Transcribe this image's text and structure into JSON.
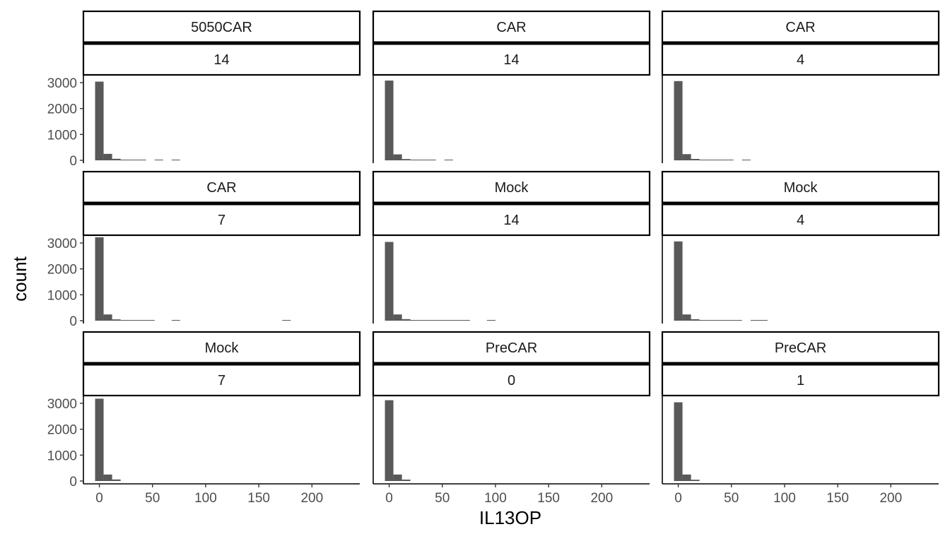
{
  "chart_data": {
    "type": "bar",
    "subtype": "faceted-histogram",
    "xlabel": "IL13OP",
    "ylabel": "count",
    "xlim": [
      -15,
      245
    ],
    "ylim": [
      0,
      3300
    ],
    "x_ticks": [
      0,
      50,
      100,
      150,
      200
    ],
    "y_ticks": [
      0,
      1000,
      2000,
      3000
    ],
    "bin_width": 8,
    "bar_color": "#595959",
    "grid": false,
    "legend": "none",
    "facets": [
      {
        "label1": "5050CAR",
        "label2": "14",
        "bins": [
          {
            "x": 0,
            "y": 3040
          },
          {
            "x": 8,
            "y": 250
          },
          {
            "x": 16,
            "y": 60
          },
          {
            "x": 24,
            "y": 20
          },
          {
            "x": 32,
            "y": 12
          },
          {
            "x": 40,
            "y": 8
          },
          {
            "x": 56,
            "y": 4
          },
          {
            "x": 72,
            "y": 3
          }
        ]
      },
      {
        "label1": "CAR",
        "label2": "14",
        "bins": [
          {
            "x": 0,
            "y": 3080
          },
          {
            "x": 8,
            "y": 230
          },
          {
            "x": 16,
            "y": 50
          },
          {
            "x": 24,
            "y": 15
          },
          {
            "x": 32,
            "y": 10
          },
          {
            "x": 40,
            "y": 6
          },
          {
            "x": 56,
            "y": 3
          }
        ]
      },
      {
        "label1": "CAR",
        "label2": "4",
        "bins": [
          {
            "x": 0,
            "y": 3060
          },
          {
            "x": 8,
            "y": 240
          },
          {
            "x": 16,
            "y": 55
          },
          {
            "x": 24,
            "y": 15
          },
          {
            "x": 32,
            "y": 10
          },
          {
            "x": 40,
            "y": 8
          },
          {
            "x": 48,
            "y": 5
          },
          {
            "x": 64,
            "y": 3
          }
        ]
      },
      {
        "label1": "CAR",
        "label2": "7",
        "bins": [
          {
            "x": 0,
            "y": 3220
          },
          {
            "x": 8,
            "y": 240
          },
          {
            "x": 16,
            "y": 50
          },
          {
            "x": 24,
            "y": 15
          },
          {
            "x": 32,
            "y": 10
          },
          {
            "x": 40,
            "y": 8
          },
          {
            "x": 48,
            "y": 5
          },
          {
            "x": 72,
            "y": 3
          },
          {
            "x": 176,
            "y": 3
          }
        ]
      },
      {
        "label1": "Mock",
        "label2": "14",
        "bins": [
          {
            "x": 0,
            "y": 3040
          },
          {
            "x": 8,
            "y": 240
          },
          {
            "x": 16,
            "y": 60
          },
          {
            "x": 24,
            "y": 20
          },
          {
            "x": 32,
            "y": 15
          },
          {
            "x": 40,
            "y": 10
          },
          {
            "x": 48,
            "y": 8
          },
          {
            "x": 56,
            "y": 6
          },
          {
            "x": 64,
            "y": 5
          },
          {
            "x": 72,
            "y": 4
          },
          {
            "x": 96,
            "y": 3
          }
        ]
      },
      {
        "label1": "Mock",
        "label2": "4",
        "bins": [
          {
            "x": 0,
            "y": 3060
          },
          {
            "x": 8,
            "y": 240
          },
          {
            "x": 16,
            "y": 55
          },
          {
            "x": 24,
            "y": 20
          },
          {
            "x": 32,
            "y": 12
          },
          {
            "x": 40,
            "y": 10
          },
          {
            "x": 48,
            "y": 8
          },
          {
            "x": 56,
            "y": 6
          },
          {
            "x": 72,
            "y": 4
          },
          {
            "x": 80,
            "y": 3
          }
        ]
      },
      {
        "label1": "Mock",
        "label2": "7",
        "bins": [
          {
            "x": 0,
            "y": 3180
          },
          {
            "x": 8,
            "y": 250
          },
          {
            "x": 16,
            "y": 60
          }
        ]
      },
      {
        "label1": "PreCAR",
        "label2": "0",
        "bins": [
          {
            "x": 0,
            "y": 3120
          },
          {
            "x": 8,
            "y": 250
          },
          {
            "x": 16,
            "y": 55
          }
        ]
      },
      {
        "label1": "PreCAR",
        "label2": "1",
        "bins": [
          {
            "x": 0,
            "y": 3040
          },
          {
            "x": 8,
            "y": 250
          },
          {
            "x": 16,
            "y": 50
          }
        ]
      }
    ]
  }
}
